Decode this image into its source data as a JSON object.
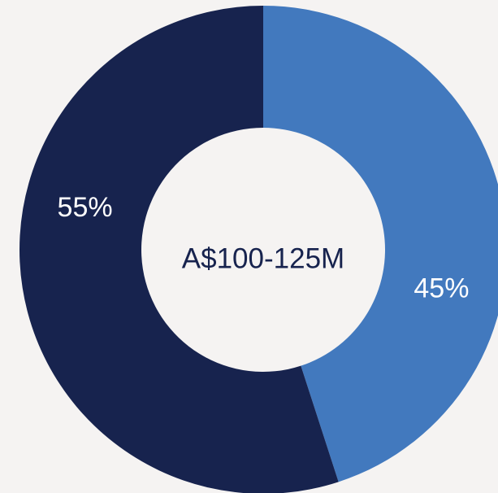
{
  "chart_data": {
    "type": "donut",
    "values": [
      45,
      55
    ],
    "value_labels": [
      "45%",
      "55%"
    ],
    "colors": [
      "#4279be",
      "#17234e"
    ],
    "center_label": "A$100-125M"
  }
}
